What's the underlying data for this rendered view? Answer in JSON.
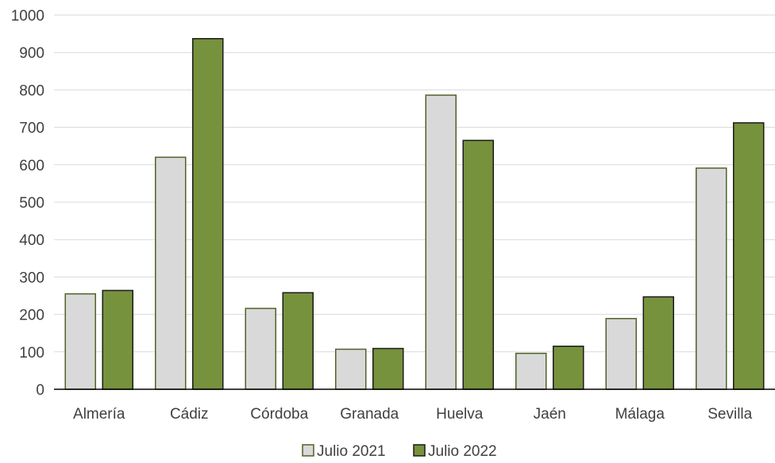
{
  "chart_data": {
    "type": "bar",
    "title": "",
    "xlabel": "",
    "ylabel": "",
    "categories": [
      "Almería",
      "Cádiz",
      "Córdoba",
      "Granada",
      "Huelva",
      "Jaén",
      "Málaga",
      "Sevilla"
    ],
    "series": [
      {
        "name": "Julio 2021",
        "values": [
          255,
          620,
          216,
          107,
          786,
          96,
          189,
          591
        ],
        "color": "#d9d9d9",
        "stroke": "#4f6228"
      },
      {
        "name": "Julio 2022",
        "values": [
          264,
          937,
          258,
          109,
          665,
          115,
          247,
          712
        ],
        "color": "#76923c",
        "stroke": "#1a1a1a"
      }
    ],
    "ylim": [
      0,
      1000
    ],
    "yticks": [
      0,
      100,
      200,
      300,
      400,
      500,
      600,
      700,
      800,
      900,
      1000
    ],
    "grid": true,
    "legend_position": "bottom"
  }
}
